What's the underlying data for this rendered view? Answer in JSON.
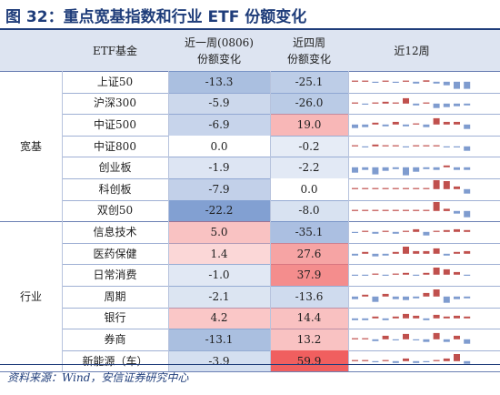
{
  "title": "图 32：重点宽基指数和行业 ETF 份额变化",
  "source": "资料来源：Wind，安信证券研究中心",
  "headers": {
    "col1": "ETF基金",
    "week_line1": "近一周(0806)",
    "week_line2": "份额变化",
    "four_line1": "近四周",
    "four_line2": "份额变化",
    "weeks12": "近12周"
  },
  "groups": [
    {
      "label": "宽基",
      "start": 0,
      "count": 7
    },
    {
      "label": "行业",
      "start": 7,
      "count": 7
    }
  ],
  "colors": {
    "header_bg": "#dde4f1",
    "neg_strong": "#8fa6d0",
    "neg_light": "#cfdaee",
    "pos_strong": "#f07a7a",
    "pos_light": "#fbd2d2",
    "spark_pos": "#c0504d",
    "spark_neg": "#7f9ccf"
  },
  "rows": [
    {
      "name": "上证50",
      "week": "-13.3",
      "four": "-25.1",
      "w": -13.3,
      "f": -25.1,
      "spark": [
        0,
        0.1,
        -0.1,
        0.1,
        -0.1,
        0.1,
        -0.2,
        0.15,
        -0.2,
        -0.4,
        -0.8,
        -0.8
      ]
    },
    {
      "name": "沪深300",
      "week": "-5.9",
      "four": "-26.0",
      "w": -5.9,
      "f": -26.0,
      "spark": [
        0.1,
        -0.1,
        0.1,
        0.2,
        0.1,
        0.6,
        -0.2,
        0.1,
        -0.5,
        -0.4,
        -0.3,
        -0.2
      ]
    },
    {
      "name": "中证500",
      "week": "-6.9",
      "four": "19.0",
      "w": -6.9,
      "f": 19.0,
      "spark": [
        -0.4,
        -0.3,
        0.2,
        -0.2,
        0.3,
        -0.2,
        0.1,
        -0.3,
        0.7,
        0.3,
        0.3,
        -0.5
      ]
    },
    {
      "name": "中证800",
      "week": "0.0",
      "four": "-0.2",
      "w": 0.0,
      "f": -0.2,
      "spark": [
        0.1,
        -0.1,
        0.2,
        0.05,
        0.05,
        -0.05,
        0.05,
        0.05,
        0.1,
        -0.05,
        -0.1,
        -0.5
      ]
    },
    {
      "name": "创业板",
      "week": "-1.9",
      "four": "-2.2",
      "w": -1.9,
      "f": -2.2,
      "spark": [
        -0.6,
        -0.3,
        -0.8,
        -0.4,
        -0.2,
        -0.9,
        -0.5,
        -0.2,
        -0.3,
        0.2,
        -0.3,
        -0.3
      ]
    },
    {
      "name": "科创板",
      "week": "-7.9",
      "four": "0.0",
      "w": -7.9,
      "f": 0.0,
      "spark": [
        0,
        0,
        0,
        0,
        0,
        0,
        0,
        0,
        1.0,
        0.9,
        0.3,
        -0.5
      ]
    },
    {
      "name": "双创50",
      "week": "-22.2",
      "four": "-8.0",
      "w": -22.2,
      "f": -8.0,
      "spark": [
        0,
        0,
        0,
        0,
        0,
        0,
        0,
        0,
        1.0,
        0.25,
        -0.3,
        -0.7
      ]
    },
    {
      "name": "信息技术",
      "week": "5.0",
      "four": "-35.1",
      "w": 5.0,
      "f": -35.1,
      "spark": [
        -0.1,
        0.1,
        -0.2,
        0.1,
        -0.2,
        0.1,
        0.3,
        -0.4,
        0.1,
        0.2,
        0.3,
        0.2
      ]
    },
    {
      "name": "医药保健",
      "week": "1.4",
      "four": "27.6",
      "w": 1.4,
      "f": 27.6,
      "spark": [
        -0.2,
        0.2,
        -0.3,
        -0.2,
        0.2,
        0.8,
        0.3,
        0.3,
        0.6,
        -0.2,
        0.2,
        0.3
      ]
    },
    {
      "name": "日常消费",
      "week": "-1.0",
      "four": "37.9",
      "w": -1.0,
      "f": 37.9,
      "spark": [
        -0.1,
        -0.1,
        0.1,
        -0.1,
        0.1,
        0.2,
        -0.1,
        0.2,
        0.8,
        0.6,
        0.3,
        -0.1
      ]
    },
    {
      "name": "周期",
      "week": "-2.1",
      "four": "-13.6",
      "w": -2.1,
      "f": -13.6,
      "spark": [
        -0.3,
        0.2,
        -0.6,
        0.3,
        -0.3,
        -0.4,
        -0.2,
        0.4,
        0.8,
        -0.7,
        -0.3,
        -0.2
      ]
    },
    {
      "name": "银行",
      "week": "4.2",
      "four": "14.4",
      "w": 4.2,
      "f": 14.4,
      "spark": [
        -0.2,
        -0.2,
        0.2,
        -0.2,
        0.2,
        0.5,
        0.3,
        -0.2,
        0.4,
        0.2,
        0.3,
        0.2
      ]
    },
    {
      "name": "券商",
      "week": "-13.1",
      "four": "13.2",
      "w": -13.1,
      "f": 13.2,
      "spark": [
        0.1,
        0.1,
        -0.2,
        0.4,
        -0.1,
        0.6,
        -0.1,
        -0.3,
        0.7,
        -0.3,
        0.4,
        -0.5
      ]
    },
    {
      "name": "新能源（车）",
      "week": "-3.9",
      "four": "59.9",
      "w": -3.9,
      "f": 59.9,
      "spark": [
        0.1,
        0.1,
        -0.1,
        0.1,
        -0.2,
        0.3,
        -0.2,
        -0.1,
        0.1,
        0.3,
        0.8,
        -0.3
      ]
    }
  ]
}
